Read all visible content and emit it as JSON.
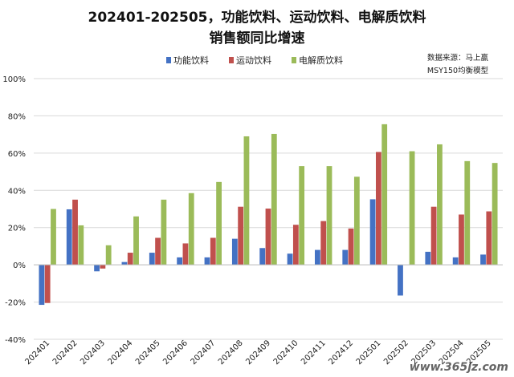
{
  "chart_data": {
    "type": "bar",
    "title_line1": "202401-202505，功能饮料、运动饮料、电解质饮料",
    "title_line2": "销售额同比增速",
    "categories": [
      "202401",
      "202402",
      "202403",
      "202404",
      "202405",
      "202406",
      "202407",
      "202408",
      "202409",
      "202410",
      "202411",
      "202412",
      "202501",
      "202502",
      "202503",
      "202504",
      "202505"
    ],
    "series": [
      {
        "name": "功能饮料",
        "color": "#4472C4",
        "values": [
          -21.5,
          29.8,
          -3.5,
          1.5,
          6.5,
          4,
          4,
          14,
          9,
          6,
          8,
          8,
          35.2,
          -16.5,
          7,
          4,
          5.5
        ]
      },
      {
        "name": "运动饮料",
        "color": "#C0504D",
        "values": [
          -20.5,
          35,
          -2,
          6.5,
          14.5,
          11.5,
          14.5,
          31.2,
          30.2,
          21.5,
          23.5,
          19.5,
          60.6,
          0,
          31.2,
          27,
          28.7
        ]
      },
      {
        "name": "电解质饮料",
        "color": "#9BBB59",
        "values": [
          30,
          21.2,
          10.5,
          26,
          35,
          38.5,
          44.5,
          69,
          70.3,
          53,
          53,
          47.3,
          75.5,
          61,
          64.7,
          55.7,
          54.7
        ]
      }
    ],
    "ylim": [
      -40,
      100
    ],
    "yticks": [
      "-40%",
      "-20%",
      "0%",
      "20%",
      "40%",
      "60%",
      "80%",
      "100%"
    ],
    "ytick_values": [
      -40,
      -20,
      0,
      20,
      40,
      60,
      80,
      100
    ],
    "grid": true,
    "legend_position": "top-center"
  },
  "source_line1": "数据来源：马上赢",
  "source_line2": "MSY150均衡模型",
  "watermark": "www.365jz.com"
}
